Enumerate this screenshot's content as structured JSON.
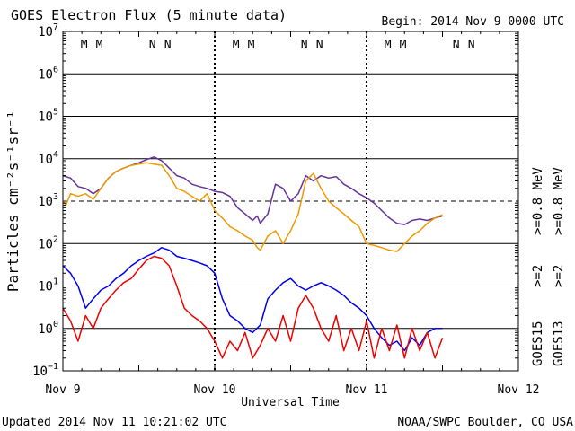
{
  "chart_data": {
    "type": "line",
    "title": "GOES Electron Flux (5 minute data)",
    "begin_label": "Begin: 2014 Nov 9 0000 UTC",
    "xlabel": "Universal Time",
    "ylabel": "Particles cm⁻²s⁻¹sr⁻¹",
    "x_unit": "days since 2014 Nov 9 0000 UTC",
    "xlim": [
      0,
      3
    ],
    "x_ticks": [
      {
        "x": 0,
        "label": "Nov 9"
      },
      {
        "x": 1,
        "label": "Nov 10"
      },
      {
        "x": 2,
        "label": "Nov 11"
      },
      {
        "x": 3,
        "label": "Nov 12"
      }
    ],
    "y_scale": "log",
    "ylim": [
      0.1,
      10000000
    ],
    "y_ticks": [
      {
        "v": 0.1,
        "base": "10",
        "exp": "−1"
      },
      {
        "v": 1,
        "base": "10",
        "exp": "0"
      },
      {
        "v": 10,
        "base": "10",
        "exp": "1"
      },
      {
        "v": 100,
        "base": "10",
        "exp": "2"
      },
      {
        "v": 1000,
        "base": "10",
        "exp": "3"
      },
      {
        "v": 10000,
        "base": "10",
        "exp": "4"
      },
      {
        "v": 100000,
        "base": "10",
        "exp": "5"
      },
      {
        "v": 1000000,
        "base": "10",
        "exp": "6"
      },
      {
        "v": 10000000,
        "base": "10",
        "exp": "7"
      }
    ],
    "threshold_line": 1000,
    "grid": true,
    "noon_midnight_markers": [
      {
        "x": 0.14,
        "label": "M",
        "color": "#dd0000"
      },
      {
        "x": 0.24,
        "label": "M",
        "color": "#0000cc"
      },
      {
        "x": 0.59,
        "label": "N",
        "color": "#dd0000"
      },
      {
        "x": 0.69,
        "label": "N",
        "color": "#0000cc"
      },
      {
        "x": 1.14,
        "label": "M",
        "color": "#dd0000"
      },
      {
        "x": 1.24,
        "label": "M",
        "color": "#0000cc"
      },
      {
        "x": 1.59,
        "label": "N",
        "color": "#dd0000"
      },
      {
        "x": 1.69,
        "label": "N",
        "color": "#0000cc"
      },
      {
        "x": 2.14,
        "label": "M",
        "color": "#dd0000"
      },
      {
        "x": 2.24,
        "label": "M",
        "color": "#0000cc"
      },
      {
        "x": 2.59,
        "label": "N",
        "color": "#dd0000"
      },
      {
        "x": 2.69,
        "label": "N",
        "color": "#0000cc"
      }
    ],
    "series": [
      {
        "name": ">=0.8 MeV",
        "satellite": "GOES15",
        "color": "#663399",
        "points": [
          [
            0,
            4000
          ],
          [
            0.05,
            3500
          ],
          [
            0.1,
            2200
          ],
          [
            0.15,
            2000
          ],
          [
            0.2,
            1500
          ],
          [
            0.25,
            2000
          ],
          [
            0.3,
            3500
          ],
          [
            0.35,
            5000
          ],
          [
            0.4,
            6000
          ],
          [
            0.45,
            7000
          ],
          [
            0.5,
            8000
          ],
          [
            0.55,
            9500
          ],
          [
            0.6,
            11000
          ],
          [
            0.65,
            9000
          ],
          [
            0.7,
            6000
          ],
          [
            0.75,
            4000
          ],
          [
            0.8,
            3500
          ],
          [
            0.85,
            2500
          ],
          [
            0.9,
            2200
          ],
          [
            0.95,
            2000
          ],
          [
            1.0,
            1700
          ],
          [
            1.05,
            1600
          ],
          [
            1.1,
            1300
          ],
          [
            1.15,
            700
          ],
          [
            1.2,
            500
          ],
          [
            1.25,
            350
          ],
          [
            1.28,
            450
          ],
          [
            1.3,
            300
          ],
          [
            1.35,
            500
          ],
          [
            1.4,
            2500
          ],
          [
            1.45,
            2000
          ],
          [
            1.5,
            1000
          ],
          [
            1.55,
            1500
          ],
          [
            1.6,
            4000
          ],
          [
            1.65,
            3000
          ],
          [
            1.7,
            4000
          ],
          [
            1.75,
            3500
          ],
          [
            1.8,
            3800
          ],
          [
            1.85,
            2500
          ],
          [
            1.9,
            2000
          ],
          [
            1.95,
            1500
          ],
          [
            2.0,
            1200
          ],
          [
            2.05,
            900
          ],
          [
            2.1,
            600
          ],
          [
            2.15,
            400
          ],
          [
            2.2,
            300
          ],
          [
            2.25,
            280
          ],
          [
            2.3,
            350
          ],
          [
            2.35,
            380
          ],
          [
            2.4,
            350
          ],
          [
            2.45,
            400
          ],
          [
            2.5,
            450
          ]
        ]
      },
      {
        "name": ">=0.8 MeV",
        "satellite": "GOES13",
        "color": "#ee9900",
        "points": [
          [
            0,
            1000
          ],
          [
            0.02,
            800
          ],
          [
            0.05,
            1500
          ],
          [
            0.1,
            1300
          ],
          [
            0.15,
            1500
          ],
          [
            0.2,
            1100
          ],
          [
            0.25,
            2000
          ],
          [
            0.3,
            3500
          ],
          [
            0.35,
            5000
          ],
          [
            0.4,
            6000
          ],
          [
            0.45,
            7000
          ],
          [
            0.5,
            7500
          ],
          [
            0.55,
            8000
          ],
          [
            0.6,
            7500
          ],
          [
            0.65,
            7000
          ],
          [
            0.7,
            4000
          ],
          [
            0.75,
            2000
          ],
          [
            0.8,
            1700
          ],
          [
            0.85,
            1300
          ],
          [
            0.9,
            1000
          ],
          [
            0.95,
            1500
          ],
          [
            1.0,
            600
          ],
          [
            1.05,
            400
          ],
          [
            1.1,
            250
          ],
          [
            1.15,
            200
          ],
          [
            1.2,
            150
          ],
          [
            1.25,
            120
          ],
          [
            1.28,
            80
          ],
          [
            1.3,
            70
          ],
          [
            1.35,
            150
          ],
          [
            1.4,
            200
          ],
          [
            1.45,
            100
          ],
          [
            1.5,
            200
          ],
          [
            1.55,
            500
          ],
          [
            1.6,
            3000
          ],
          [
            1.65,
            4500
          ],
          [
            1.7,
            2000
          ],
          [
            1.75,
            1000
          ],
          [
            1.8,
            700
          ],
          [
            1.85,
            500
          ],
          [
            1.9,
            350
          ],
          [
            1.95,
            250
          ],
          [
            2.0,
            100
          ],
          [
            2.05,
            90
          ],
          [
            2.1,
            80
          ],
          [
            2.15,
            70
          ],
          [
            2.2,
            65
          ],
          [
            2.25,
            100
          ],
          [
            2.3,
            150
          ],
          [
            2.35,
            200
          ],
          [
            2.4,
            300
          ],
          [
            2.45,
            400
          ],
          [
            2.5,
            480
          ]
        ]
      },
      {
        "name": ">=2 MeV",
        "satellite": "GOES15",
        "color": "#0000ee",
        "points": [
          [
            0,
            30
          ],
          [
            0.05,
            20
          ],
          [
            0.1,
            10
          ],
          [
            0.15,
            3
          ],
          [
            0.2,
            5
          ],
          [
            0.25,
            8
          ],
          [
            0.3,
            10
          ],
          [
            0.35,
            15
          ],
          [
            0.4,
            20
          ],
          [
            0.45,
            30
          ],
          [
            0.5,
            40
          ],
          [
            0.55,
            50
          ],
          [
            0.6,
            60
          ],
          [
            0.65,
            80
          ],
          [
            0.7,
            70
          ],
          [
            0.75,
            50
          ],
          [
            0.8,
            45
          ],
          [
            0.85,
            40
          ],
          [
            0.9,
            35
          ],
          [
            0.95,
            30
          ],
          [
            1.0,
            20
          ],
          [
            1.05,
            5
          ],
          [
            1.1,
            2
          ],
          [
            1.15,
            1.5
          ],
          [
            1.2,
            1
          ],
          [
            1.25,
            0.8
          ],
          [
            1.3,
            1.2
          ],
          [
            1.35,
            5
          ],
          [
            1.4,
            8
          ],
          [
            1.45,
            12
          ],
          [
            1.5,
            15
          ],
          [
            1.55,
            10
          ],
          [
            1.6,
            8
          ],
          [
            1.65,
            10
          ],
          [
            1.7,
            12
          ],
          [
            1.75,
            10
          ],
          [
            1.8,
            8
          ],
          [
            1.85,
            6
          ],
          [
            1.9,
            4
          ],
          [
            1.95,
            3
          ],
          [
            2.0,
            2
          ],
          [
            2.05,
            1
          ],
          [
            2.1,
            0.6
          ],
          [
            2.15,
            0.4
          ],
          [
            2.2,
            0.5
          ],
          [
            2.25,
            0.3
          ],
          [
            2.3,
            0.6
          ],
          [
            2.35,
            0.4
          ],
          [
            2.4,
            0.8
          ],
          [
            2.45,
            1
          ],
          [
            2.5,
            1
          ]
        ]
      },
      {
        "name": ">=2 MeV",
        "satellite": "GOES13",
        "color": "#ee0000",
        "points": [
          [
            0,
            3
          ],
          [
            0.05,
            1.5
          ],
          [
            0.1,
            0.5
          ],
          [
            0.15,
            2
          ],
          [
            0.2,
            1
          ],
          [
            0.25,
            3
          ],
          [
            0.3,
            5
          ],
          [
            0.35,
            8
          ],
          [
            0.4,
            12
          ],
          [
            0.45,
            15
          ],
          [
            0.5,
            25
          ],
          [
            0.55,
            40
          ],
          [
            0.6,
            50
          ],
          [
            0.65,
            45
          ],
          [
            0.7,
            30
          ],
          [
            0.75,
            10
          ],
          [
            0.8,
            3
          ],
          [
            0.85,
            2
          ],
          [
            0.9,
            1.5
          ],
          [
            0.95,
            1
          ],
          [
            1.0,
            0.5
          ],
          [
            1.05,
            0.2
          ],
          [
            1.1,
            0.5
          ],
          [
            1.15,
            0.3
          ],
          [
            1.2,
            0.8
          ],
          [
            1.25,
            0.2
          ],
          [
            1.3,
            0.4
          ],
          [
            1.35,
            1
          ],
          [
            1.4,
            0.5
          ],
          [
            1.45,
            2
          ],
          [
            1.5,
            0.5
          ],
          [
            1.55,
            3
          ],
          [
            1.6,
            6
          ],
          [
            1.65,
            3
          ],
          [
            1.7,
            1
          ],
          [
            1.75,
            0.5
          ],
          [
            1.8,
            2
          ],
          [
            1.85,
            0.3
          ],
          [
            1.9,
            1
          ],
          [
            1.95,
            0.3
          ],
          [
            2.0,
            1.5
          ],
          [
            2.05,
            0.2
          ],
          [
            2.1,
            1
          ],
          [
            2.15,
            0.3
          ],
          [
            2.2,
            1.2
          ],
          [
            2.25,
            0.2
          ],
          [
            2.3,
            1
          ],
          [
            2.35,
            0.3
          ],
          [
            2.4,
            0.8
          ],
          [
            2.45,
            0.2
          ],
          [
            2.5,
            0.6
          ]
        ]
      }
    ],
    "legend": {
      "placement": "right",
      "mev_labels": [
        {
          "text": ">=0.8 MeV",
          "color": "#663399"
        },
        {
          "text": ">=0.8 MeV",
          "color": "#ee9900"
        }
      ],
      "energy_labels": [
        {
          "text": ">=2",
          "color": "#0000ee"
        },
        {
          "text": ">=2",
          "color": "#ee0000"
        }
      ],
      "satellite_labels": [
        "GOES15",
        "GOES13"
      ]
    }
  },
  "footer": {
    "updated": "Updated 2014 Nov 11 10:21:02 UTC",
    "credit": "NOAA/SWPC Boulder, CO USA"
  }
}
